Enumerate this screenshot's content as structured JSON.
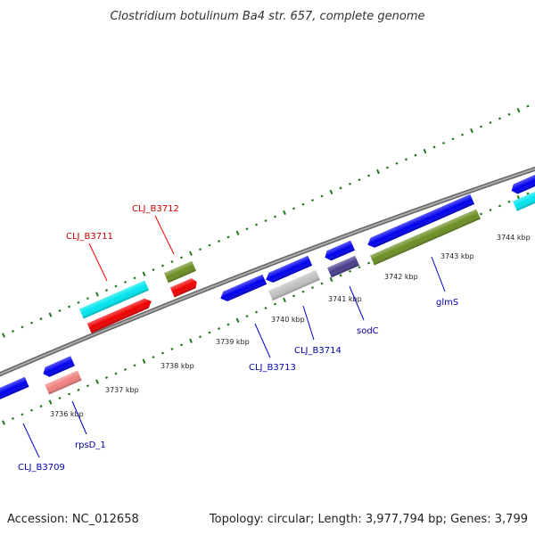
{
  "title": "Clostridium botulinum Ba4 str. 657, complete genome",
  "footer": {
    "accession": "Accession: NC_012658",
    "topology": "Topology: circular; Length: 3,977,794 bp; Genes: 3,799"
  },
  "colors": {
    "background": "#ffffff",
    "backbone": "#888888",
    "tick": "#1b7a1b",
    "label_red": "#cc0000",
    "label_blue": "#0000aa",
    "leader_red": "#ff0000",
    "leader_blue": "#0000cc",
    "cds_forward": "#0000ee",
    "cds_reverse": "#0000ee",
    "rRNA": "#00e5ee",
    "tRNA": "#ee0000",
    "misc_gene": "#6b8e23",
    "pseudo": "#f08080",
    "gray_feature": "#c0c0c0",
    "indigo_feature": "#483d8b"
  },
  "scale_labels": [
    "3736 kbp",
    "3737 kbp",
    "3738 kbp",
    "3739 kbp",
    "3740 kbp",
    "3741 kbp",
    "3742 kbp",
    "3743 kbp",
    "3744 kbp"
  ],
  "gene_labels": [
    {
      "name": "CLJ_B3711",
      "color": "red"
    },
    {
      "name": "CLJ_B3712",
      "color": "red"
    },
    {
      "name": "CLJ_B3709",
      "color": "blue"
    },
    {
      "name": "rpsD_1",
      "color": "blue"
    },
    {
      "name": "CLJ_B3713",
      "color": "blue"
    },
    {
      "name": "CLJ_B3714",
      "color": "blue"
    },
    {
      "name": "sodC",
      "color": "blue"
    },
    {
      "name": "glmS",
      "color": "blue"
    }
  ]
}
